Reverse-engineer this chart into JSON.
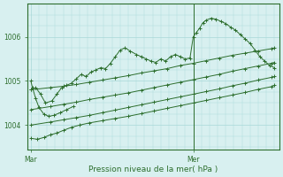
{
  "bg_color": "#d8f0f0",
  "grid_color": "#a8d8d8",
  "line_color": "#2d6e2d",
  "marker_color": "#2d6e2d",
  "axis_color": "#2d6e2d",
  "tick_color": "#2d6e2d",
  "text_color": "#2d6e2d",
  "xlabel": "Pression niveau de la mer( hPa )",
  "ylim": [
    1003.45,
    1006.75
  ],
  "yticks": [
    1004,
    1005,
    1006
  ],
  "figsize": [
    3.2,
    2.0
  ],
  "dpi": 100,
  "series": [
    {
      "x": [
        0.0,
        0.03,
        0.06,
        0.09,
        0.13,
        0.16,
        0.19,
        0.22,
        0.25,
        0.28,
        0.31,
        0.34,
        0.37,
        0.4,
        0.43,
        0.46,
        0.49,
        0.52,
        0.55,
        0.58,
        0.61,
        0.65,
        0.68,
        0.71,
        0.74,
        0.77,
        0.8,
        0.83,
        0.86,
        0.89,
        0.92,
        0.95,
        0.98,
        1.0,
        1.02,
        1.04,
        1.06,
        1.08,
        1.11,
        1.14,
        1.17,
        1.2,
        1.23,
        1.26,
        1.29,
        1.32,
        1.35,
        1.38,
        1.41,
        1.44,
        1.47,
        1.5
      ],
      "y": [
        1004.8,
        1004.85,
        1004.7,
        1004.5,
        1004.55,
        1004.7,
        1004.85,
        1004.9,
        1004.95,
        1005.05,
        1005.15,
        1005.1,
        1005.2,
        1005.25,
        1005.3,
        1005.28,
        1005.4,
        1005.55,
        1005.7,
        1005.75,
        1005.68,
        1005.6,
        1005.55,
        1005.5,
        1005.45,
        1005.42,
        1005.5,
        1005.45,
        1005.55,
        1005.6,
        1005.55,
        1005.5,
        1005.52,
        1006.0,
        1006.1,
        1006.2,
        1006.32,
        1006.38,
        1006.42,
        1006.4,
        1006.35,
        1006.3,
        1006.22,
        1006.15,
        1006.05,
        1005.95,
        1005.85,
        1005.7,
        1005.55,
        1005.45,
        1005.35,
        1005.3
      ]
    },
    {
      "x": [
        0.0,
        0.12,
        0.2,
        0.28,
        0.36,
        0.44,
        0.52,
        0.6,
        0.68,
        0.76,
        0.84,
        0.92,
        1.0,
        1.08,
        1.16,
        1.24,
        1.32,
        1.4,
        1.48,
        1.5
      ],
      "y": [
        1004.8,
        1004.85,
        1004.88,
        1004.92,
        1004.97,
        1005.02,
        1005.07,
        1005.12,
        1005.18,
        1005.23,
        1005.28,
        1005.35,
        1005.4,
        1005.46,
        1005.52,
        1005.58,
        1005.63,
        1005.68,
        1005.73,
        1005.75
      ]
    },
    {
      "x": [
        0.0,
        0.12,
        0.2,
        0.28,
        0.36,
        0.44,
        0.52,
        0.6,
        0.68,
        0.76,
        0.84,
        0.92,
        1.0,
        1.08,
        1.16,
        1.24,
        1.32,
        1.4,
        1.48,
        1.5
      ],
      "y": [
        1004.35,
        1004.42,
        1004.47,
        1004.52,
        1004.58,
        1004.63,
        1004.68,
        1004.73,
        1004.79,
        1004.85,
        1004.91,
        1004.97,
        1005.03,
        1005.09,
        1005.15,
        1005.22,
        1005.28,
        1005.34,
        1005.4,
        1005.42
      ]
    },
    {
      "x": [
        0.0,
        0.12,
        0.2,
        0.28,
        0.36,
        0.44,
        0.52,
        0.6,
        0.68,
        0.76,
        0.84,
        0.92,
        1.0,
        1.08,
        1.16,
        1.24,
        1.32,
        1.4,
        1.48,
        1.5
      ],
      "y": [
        1004.0,
        1004.07,
        1004.12,
        1004.17,
        1004.22,
        1004.28,
        1004.34,
        1004.4,
        1004.46,
        1004.52,
        1004.58,
        1004.64,
        1004.7,
        1004.76,
        1004.82,
        1004.89,
        1004.95,
        1005.02,
        1005.08,
        1005.1
      ]
    },
    {
      "x": [
        0.0,
        0.04,
        0.08,
        0.12,
        0.16,
        0.2,
        0.25,
        0.3,
        0.36,
        0.44,
        0.52,
        0.6,
        0.68,
        0.76,
        0.84,
        0.92,
        1.0,
        1.08,
        1.16,
        1.24,
        1.32,
        1.4,
        1.48,
        1.5
      ],
      "y": [
        1003.7,
        1003.68,
        1003.72,
        1003.78,
        1003.82,
        1003.88,
        1003.95,
        1004.0,
        1004.05,
        1004.1,
        1004.15,
        1004.2,
        1004.26,
        1004.32,
        1004.38,
        1004.44,
        1004.5,
        1004.56,
        1004.62,
        1004.68,
        1004.74,
        1004.81,
        1004.87,
        1004.9
      ]
    },
    {
      "x": [
        0.0,
        0.01,
        0.03,
        0.05,
        0.08,
        0.11,
        0.14,
        0.18,
        0.22,
        0.26
      ],
      "y": [
        1005.0,
        1004.85,
        1004.6,
        1004.4,
        1004.25,
        1004.2,
        1004.22,
        1004.28,
        1004.35,
        1004.42
      ]
    }
  ],
  "vline_x": 1.0,
  "xlim": [
    -0.02,
    1.53
  ],
  "xtick_positions": [
    0.0,
    1.0
  ],
  "xtick_labels": [
    "Mar",
    "Mer"
  ]
}
